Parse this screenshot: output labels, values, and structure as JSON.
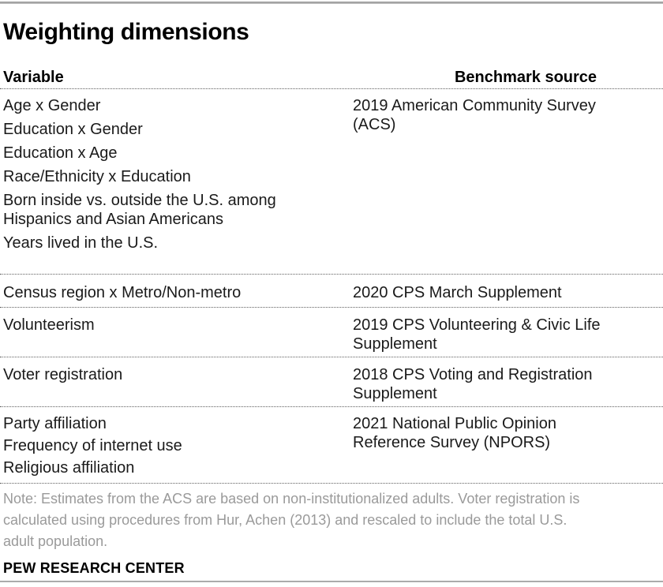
{
  "title": "Weighting dimensions",
  "chart_data": {
    "type": "table",
    "columns": [
      "Variable",
      "Benchmark source"
    ],
    "rows": [
      {
        "variables": [
          "Age x Gender",
          "Education x Gender",
          "Education x Age",
          "Race/Ethnicity x Education",
          "Born inside vs. outside the U.S. among\nHispanics and Asian Americans",
          "Years lived in the U.S."
        ],
        "source": "2019 American Community Survey\n(ACS)"
      },
      {
        "variables": [
          "Census region x Metro/Non-metro"
        ],
        "source": "2020 CPS March Supplement"
      },
      {
        "variables": [
          "Volunteerism"
        ],
        "source": "2019 CPS Volunteering & Civic Life\nSupplement"
      },
      {
        "variables": [
          "Voter registration"
        ],
        "source": "2018 CPS Voting and Registration\nSupplement"
      },
      {
        "variables": [
          "Party affiliation",
          "Frequency of internet use",
          "Religious affiliation"
        ],
        "source": "2021 National Public Opinion\nReference Survey (NPORS)"
      }
    ]
  },
  "note": "Note: Estimates from the ACS are based on non-institutionalized adults. Voter registration is\ncalculated using procedures from Hur, Achen (2013) and rescaled to include the total U.S.\nadult population.",
  "footer": "PEW RESEARCH CENTER",
  "colors": {
    "body_text": "#1a1a1a",
    "note_text": "#9a9a9a",
    "rule_gray": "#ababab",
    "divider_dotted": "#5f5f5f"
  }
}
